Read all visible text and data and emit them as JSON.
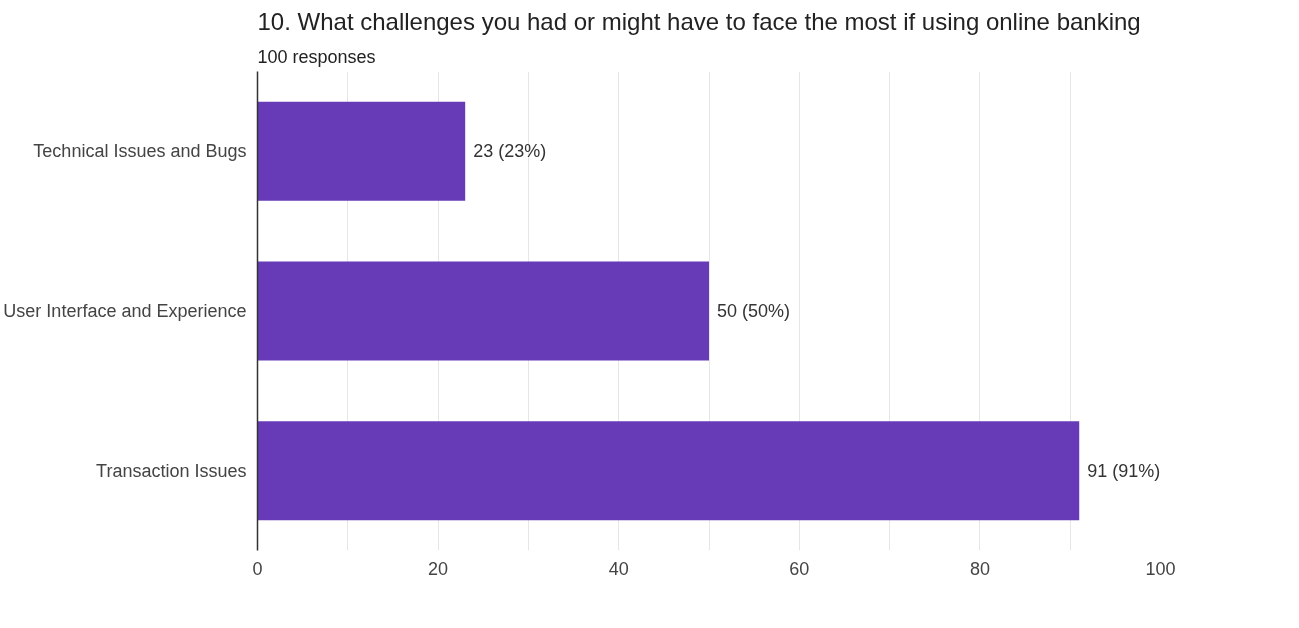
{
  "chart_data": {
    "type": "bar",
    "orientation": "horizontal",
    "title": "10. What challenges you had or might have to face the most if using online banking",
    "subtitle": "100 responses",
    "categories": [
      "Technical Issues and Bugs",
      "User Interface and Experience",
      "Transaction Issues"
    ],
    "values": [
      23,
      50,
      91
    ],
    "value_labels": [
      "23 (23%)",
      "50 (50%)",
      "91 (91%)"
    ],
    "color": "#673ab7",
    "xlim": [
      0,
      100
    ],
    "xticks": [
      0,
      {
        "value": 10,
        "label": null
      },
      20,
      {
        "value": 30,
        "label": null
      },
      40,
      {
        "value": 50,
        "label": null
      },
      60,
      {
        "value": 70,
        "label": null
      },
      80,
      {
        "value": 90,
        "label": null
      },
      100
    ],
    "grid": "x"
  }
}
